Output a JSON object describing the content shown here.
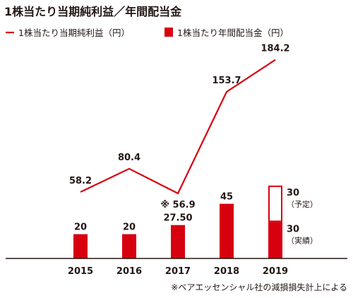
{
  "title": "1株当たり当期純利益／年間配当金",
  "colors": {
    "accent": "#d7000f",
    "text": "#231815",
    "baseline": "#231815"
  },
  "chart_data": {
    "type": "bar",
    "categories": [
      "2015",
      "2016",
      "2017",
      "2018",
      "2019"
    ],
    "series": [
      {
        "name": "1株当たり当期純利益（円）",
        "type": "line",
        "values": [
          58.2,
          80.4,
          56.9,
          153.7,
          184.2
        ],
        "labels": [
          "58.2",
          "80.4",
          "※ 56.9",
          "153.7",
          "184.2"
        ]
      },
      {
        "name": "1株当たり年間配当金（円）",
        "type": "bar",
        "values": [
          20,
          20,
          27.5,
          45,
          30
        ],
        "labels": [
          "20",
          "20",
          "27.50",
          "45",
          "30"
        ]
      }
    ],
    "forecast_2019": {
      "planned_value": 30,
      "planned_label": "30",
      "planned_note": "（予定）",
      "actual_value": 30,
      "actual_label": "30",
      "actual_note": "（実績）"
    },
    "footnote": "※ベアエッセンシャル社の減損損失計上による",
    "grid": false,
    "legend_position": "top-left"
  }
}
